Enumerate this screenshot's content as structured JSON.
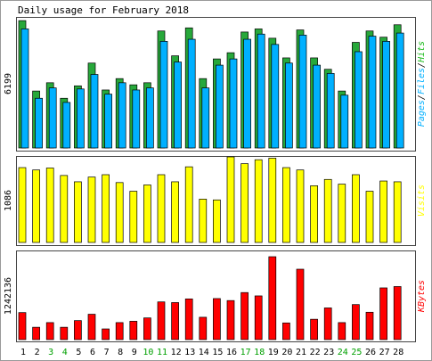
{
  "chart_data": {
    "type": "bar",
    "title": "Daily usage for February 2018",
    "categories": [
      "1",
      "2",
      "3",
      "4",
      "5",
      "6",
      "7",
      "8",
      "9",
      "10",
      "11",
      "12",
      "13",
      "14",
      "15",
      "16",
      "17",
      "18",
      "19",
      "20",
      "21",
      "22",
      "23",
      "24",
      "25",
      "26",
      "27",
      "28"
    ],
    "weekend_days": [
      "3",
      "4",
      "10",
      "11",
      "17",
      "18",
      "24",
      "25"
    ],
    "panels": [
      {
        "key": "hits_panel",
        "ymax_label": "6199",
        "legend": [
          "Pages",
          "Files",
          "Hits"
        ],
        "legend_colors": [
          "#00b0ff",
          "#00b0ff",
          "#16b916"
        ],
        "ylim": [
          0,
          6199
        ],
        "series": [
          {
            "name": "Hits",
            "color": "#27a83a",
            "values": [
              6150,
              2750,
              3150,
              2400,
              3000,
              4100,
              2800,
              3350,
              3050,
              3150,
              5650,
              4450,
              5800,
              3350,
              4300,
              4600,
              5600,
              5750,
              5300,
              4350,
              5700,
              4350,
              3800,
              2750,
              5100,
              5650,
              5350,
              5950
            ]
          },
          {
            "name": "Files",
            "color": "#00b0ff",
            "values": [
              5750,
              2400,
              2900,
              2200,
              2850,
              3550,
              2600,
              3150,
              2800,
              2900,
              5150,
              4150,
              5250,
              2900,
              4000,
              4300,
              5250,
              5500,
              5000,
              4100,
              5450,
              4000,
              3600,
              2550,
              4650,
              5400,
              5150,
              5550
            ]
          }
        ]
      },
      {
        "key": "visits_panel",
        "ymax_label": "1086",
        "legend": [
          "Visits"
        ],
        "legend_colors": [
          "#ffff00"
        ],
        "ylim": [
          0,
          1086
        ],
        "series": [
          {
            "name": "Visits",
            "color": "#ffff00",
            "values": [
              950,
              920,
              945,
              850,
              770,
              830,
              860,
              760,
              650,
              730,
              860,
              770,
              960,
              550,
              540,
              1086,
              1000,
              1050,
              1070,
              950,
              920,
              720,
              800,
              740,
              860,
              650,
              780,
              770
            ]
          }
        ]
      },
      {
        "key": "kbytes_panel",
        "ymax_label": "1242136",
        "legend": [
          "KBytes"
        ],
        "legend_colors": [
          "#ff0000"
        ],
        "ylim": [
          0,
          1242136
        ],
        "series": [
          {
            "name": "KBytes",
            "color": "#ff0000",
            "values": [
              405000,
              185000,
              255000,
              185000,
              285000,
              380000,
              160000,
              255000,
              275000,
              325000,
              565000,
              555000,
              610000,
              335000,
              615000,
              585000,
              705000,
              655000,
              1242136,
              250000,
              1055000,
              305000,
              475000,
              255000,
              525000,
              410000,
              775000,
              795000
            ]
          }
        ]
      }
    ]
  }
}
